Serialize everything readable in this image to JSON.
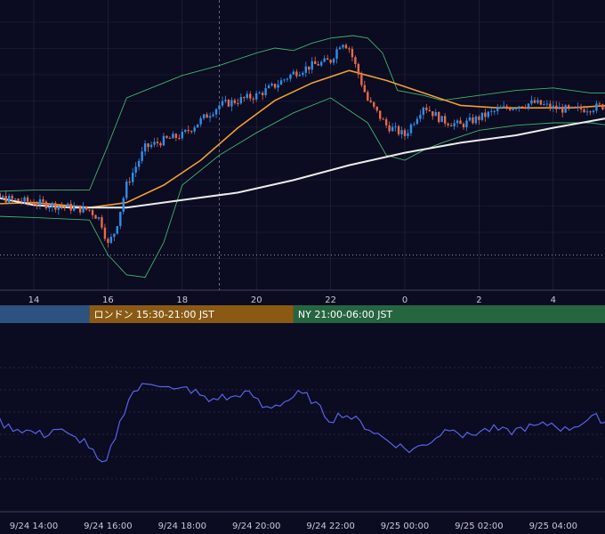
{
  "colors": {
    "background": "#0b0b22",
    "grid": "#3a3a55",
    "candle_up": "#2f8fe8",
    "candle_down": "#e86a48",
    "ma_short": "#f0a030",
    "ma_long": "#ececec",
    "bollinger": "#3fb46a",
    "oscillator": "#5a62e6",
    "session_tokyo": "#2c5280",
    "session_london": "#8a5a14",
    "session_ny": "#256640"
  },
  "chart_data": [
    {
      "type": "candlestick",
      "x_unit": "hour (JST, 9/24 12:00 = 0)",
      "x_range": [
        0,
        17.5
      ],
      "y_range": [
        0,
        1
      ],
      "x_tick_labels": [
        "14",
        "16",
        "18",
        "20",
        "22",
        "0",
        "2",
        "4"
      ],
      "x_tick_positions": [
        2,
        4,
        6,
        8,
        10,
        12,
        14,
        16
      ],
      "reference_line": 0.12,
      "close_path": [
        [
          0,
          0.33
        ],
        [
          0.5,
          0.34
        ],
        [
          1,
          0.35
        ],
        [
          1.5,
          0.34
        ],
        [
          2,
          0.33
        ],
        [
          2.5,
          0.32
        ],
        [
          3,
          0.31
        ],
        [
          3.5,
          0.3
        ],
        [
          3.8,
          0.26
        ],
        [
          4,
          0.16
        ],
        [
          4.2,
          0.22
        ],
        [
          4.5,
          0.4
        ],
        [
          5,
          0.55
        ],
        [
          5.5,
          0.58
        ],
        [
          6,
          0.6
        ],
        [
          6.5,
          0.66
        ],
        [
          7,
          0.72
        ],
        [
          7.5,
          0.74
        ],
        [
          8,
          0.76
        ],
        [
          8.5,
          0.8
        ],
        [
          9,
          0.85
        ],
        [
          9.5,
          0.88
        ],
        [
          10,
          0.9
        ],
        [
          10.3,
          0.98
        ],
        [
          10.5,
          0.95
        ],
        [
          11,
          0.74
        ],
        [
          11.5,
          0.64
        ],
        [
          12,
          0.6
        ],
        [
          12.5,
          0.72
        ],
        [
          13,
          0.66
        ],
        [
          13.5,
          0.64
        ],
        [
          14,
          0.67
        ],
        [
          14.5,
          0.7
        ],
        [
          15,
          0.72
        ],
        [
          15.5,
          0.73
        ],
        [
          16,
          0.71
        ],
        [
          16.5,
          0.7
        ],
        [
          17,
          0.71
        ],
        [
          17.5,
          0.72
        ]
      ],
      "series": [
        {
          "name": "",
          "kind": "ma_short",
          "values": [
            [
              0,
              0.32
            ],
            [
              2,
              0.33
            ],
            [
              3.5,
              0.31
            ],
            [
              4.5,
              0.33
            ],
            [
              5.5,
              0.4
            ],
            [
              6.5,
              0.5
            ],
            [
              7.5,
              0.63
            ],
            [
              8.5,
              0.74
            ],
            [
              9.5,
              0.81
            ],
            [
              10.5,
              0.86
            ],
            [
              11.5,
              0.82
            ],
            [
              12.5,
              0.77
            ],
            [
              13.5,
              0.72
            ],
            [
              14.5,
              0.71
            ],
            [
              15.5,
              0.71
            ],
            [
              16.5,
              0.71
            ],
            [
              17.5,
              0.72
            ]
          ]
        },
        {
          "name": "",
          "kind": "ma_long",
          "values": [
            [
              0,
              0.42
            ],
            [
              1,
              0.35
            ],
            [
              2,
              0.32
            ],
            [
              3,
              0.31
            ],
            [
              4.5,
              0.31
            ],
            [
              6,
              0.34
            ],
            [
              7.5,
              0.37
            ],
            [
              9,
              0.42
            ],
            [
              10.5,
              0.48
            ],
            [
              12,
              0.53
            ],
            [
              13.5,
              0.57
            ],
            [
              15,
              0.6
            ],
            [
              16,
              0.63
            ],
            [
              17.5,
              0.67
            ]
          ]
        },
        {
          "name": "",
          "kind": "bollinger_upper",
          "values": [
            [
              0,
              0.37
            ],
            [
              2,
              0.38
            ],
            [
              3.5,
              0.38
            ],
            [
              4,
              0.56
            ],
            [
              4.5,
              0.75
            ],
            [
              5,
              0.78
            ],
            [
              6,
              0.84
            ],
            [
              7,
              0.88
            ],
            [
              8,
              0.93
            ],
            [
              8.5,
              0.95
            ],
            [
              9,
              0.94
            ],
            [
              9.5,
              0.97
            ],
            [
              10,
              0.99
            ],
            [
              10.6,
              1.0
            ],
            [
              11,
              0.99
            ],
            [
              11.4,
              0.93
            ],
            [
              11.8,
              0.78
            ],
            [
              12.5,
              0.76
            ],
            [
              13,
              0.74
            ],
            [
              14,
              0.76
            ],
            [
              15,
              0.78
            ],
            [
              16,
              0.79
            ],
            [
              17,
              0.77
            ],
            [
              17.5,
              0.77
            ]
          ]
        },
        {
          "name": "",
          "kind": "bollinger_lower",
          "values": [
            [
              0,
              0.28
            ],
            [
              2,
              0.27
            ],
            [
              3.5,
              0.26
            ],
            [
              4,
              0.12
            ],
            [
              4.5,
              0.04
            ],
            [
              5,
              0.03
            ],
            [
              5.5,
              0.17
            ],
            [
              6,
              0.4
            ],
            [
              7,
              0.52
            ],
            [
              8,
              0.61
            ],
            [
              9,
              0.69
            ],
            [
              10,
              0.75
            ],
            [
              11,
              0.65
            ],
            [
              11.5,
              0.52
            ],
            [
              12,
              0.5
            ],
            [
              12.5,
              0.54
            ],
            [
              13,
              0.57
            ],
            [
              14,
              0.62
            ],
            [
              15,
              0.64
            ],
            [
              16,
              0.65
            ],
            [
              17,
              0.65
            ],
            [
              17.5,
              0.64
            ]
          ]
        }
      ]
    },
    {
      "type": "line",
      "x_unit": "hour (JST, 9/24 12:00 = 0)",
      "x_range": [
        0,
        17.5
      ],
      "y_range": [
        0,
        1
      ],
      "x_tick_labels": [
        "9/24 14:00",
        "9/24 16:00",
        "9/24 18:00",
        "9/24 20:00",
        "9/24 22:00",
        "9/25 00:00",
        "9/25 02:00",
        "9/25 04:00"
      ],
      "x_tick_positions": [
        2,
        4,
        6,
        8,
        10,
        12,
        14,
        16
      ],
      "series": [
        {
          "name": "",
          "values": [
            [
              0,
              0.4
            ],
            [
              0.35,
              0.62
            ],
            [
              0.7,
              0.42
            ],
            [
              1,
              0.5
            ],
            [
              1.3,
              0.45
            ],
            [
              1.6,
              0.43
            ],
            [
              2,
              0.4
            ],
            [
              2.3,
              0.38
            ],
            [
              2.6,
              0.44
            ],
            [
              3,
              0.36
            ],
            [
              3.4,
              0.33
            ],
            [
              3.7,
              0.18
            ],
            [
              3.9,
              0.1
            ],
            [
              4.1,
              0.28
            ],
            [
              4.4,
              0.55
            ],
            [
              4.6,
              0.72
            ],
            [
              4.9,
              0.78
            ],
            [
              5.2,
              0.82
            ],
            [
              5.5,
              0.8
            ],
            [
              5.8,
              0.74
            ],
            [
              6.1,
              0.77
            ],
            [
              6.4,
              0.73
            ],
            [
              6.7,
              0.66
            ],
            [
              7,
              0.7
            ],
            [
              7.3,
              0.68
            ],
            [
              7.6,
              0.73
            ],
            [
              7.9,
              0.71
            ],
            [
              8.2,
              0.6
            ],
            [
              8.5,
              0.63
            ],
            [
              8.8,
              0.66
            ],
            [
              9.1,
              0.72
            ],
            [
              9.4,
              0.7
            ],
            [
              9.7,
              0.6
            ],
            [
              10,
              0.5
            ],
            [
              10.3,
              0.56
            ],
            [
              10.6,
              0.52
            ],
            [
              10.9,
              0.46
            ],
            [
              11.2,
              0.4
            ],
            [
              11.5,
              0.34
            ],
            [
              11.8,
              0.3
            ],
            [
              12.1,
              0.25
            ],
            [
              12.4,
              0.28
            ],
            [
              12.7,
              0.33
            ],
            [
              13,
              0.4
            ],
            [
              13.3,
              0.46
            ],
            [
              13.6,
              0.36
            ],
            [
              14,
              0.41
            ],
            [
              14.4,
              0.43
            ],
            [
              14.8,
              0.4
            ],
            [
              15.2,
              0.44
            ],
            [
              15.6,
              0.45
            ],
            [
              16,
              0.48
            ],
            [
              16.3,
              0.42
            ],
            [
              16.6,
              0.46
            ],
            [
              16.9,
              0.5
            ],
            [
              17.2,
              0.53
            ],
            [
              17.5,
              0.47
            ]
          ]
        }
      ]
    }
  ],
  "sessions": [
    {
      "label": "",
      "start": -0.5,
      "end": 3.5,
      "color_key": "session_tokyo"
    },
    {
      "label": "ロンドン 15:30-21:00 JST",
      "start": 3.5,
      "end": 9,
      "color_key": "session_london"
    },
    {
      "label": "NY 21:00-06:00 JST",
      "start": 9,
      "end": 18,
      "color_key": "session_ny"
    }
  ]
}
